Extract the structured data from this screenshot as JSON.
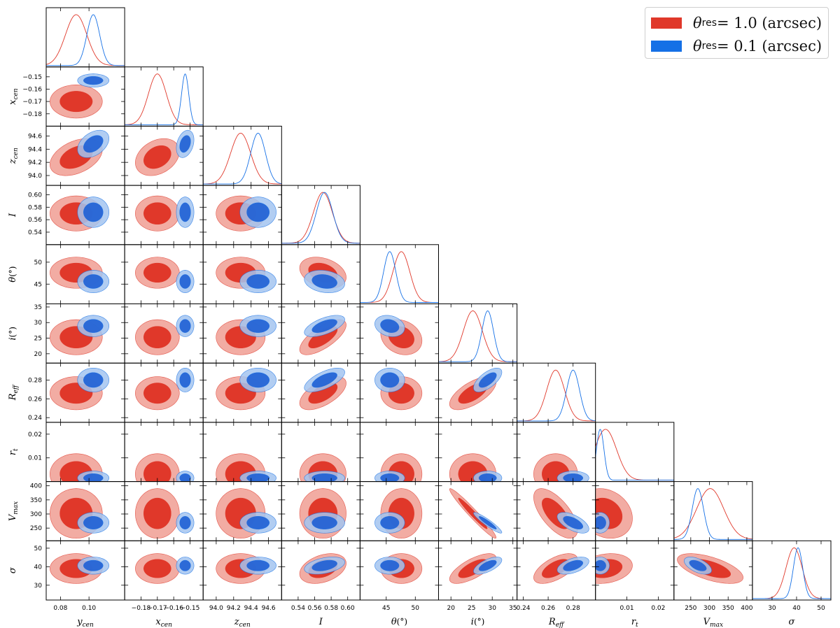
{
  "chart_data": {
    "type": "corner",
    "parameters": [
      {
        "symbol": "y",
        "sub": "cen",
        "unit": "",
        "label_text": "y_cen",
        "range": [
          0.07,
          0.125
        ],
        "ticks": [
          0.08,
          0.1
        ],
        "tick_labels": [
          "0.08",
          "0.10"
        ]
      },
      {
        "symbol": "x",
        "sub": "cen",
        "unit": "",
        "label_text": "x_cen",
        "range": [
          -0.19,
          -0.142
        ],
        "ticks": [
          -0.18,
          -0.17,
          -0.16,
          -0.15
        ],
        "tick_labels": [
          "−0.18",
          "−0.17",
          "−0.16",
          "−0.15"
        ]
      },
      {
        "symbol": "z",
        "sub": "cen",
        "unit": "",
        "label_text": "z_cen",
        "range": [
          93.85,
          94.75
        ],
        "ticks": [
          94.0,
          94.2,
          94.4,
          94.6
        ],
        "tick_labels": [
          "94.0",
          "94.2",
          "94.4",
          "94.6"
        ]
      },
      {
        "symbol": "I",
        "sub": "",
        "unit": "",
        "label_text": "I",
        "range": [
          0.52,
          0.615
        ],
        "ticks": [
          0.54,
          0.56,
          0.58,
          0.6
        ],
        "tick_labels": [
          "0.54",
          "0.56",
          "0.58",
          "0.60"
        ]
      },
      {
        "symbol": "θ",
        "sub": "",
        "unit": "(°)",
        "label_text": "θ(°)",
        "range": [
          40.5,
          54
        ],
        "ticks": [
          45,
          50
        ],
        "tick_labels": [
          "45",
          "50"
        ]
      },
      {
        "symbol": "i",
        "sub": "",
        "unit": "(°)",
        "label_text": "i(°)",
        "range": [
          17,
          36
        ],
        "ticks": [
          20,
          25,
          30,
          35
        ],
        "tick_labels": [
          "20",
          "25",
          "30",
          "35"
        ]
      },
      {
        "symbol": "R",
        "sub": "eff",
        "unit": "",
        "label_text": "R_eff",
        "range": [
          0.235,
          0.298
        ],
        "ticks": [
          0.24,
          0.26,
          0.28
        ],
        "tick_labels": [
          "0.24",
          "0.26",
          "0.28"
        ]
      },
      {
        "symbol": "r",
        "sub": "t",
        "unit": "",
        "label_text": "r_t",
        "range": [
          0.0,
          0.025
        ],
        "ticks": [
          0.01,
          0.02
        ],
        "tick_labels": [
          "0.01",
          "0.02"
        ]
      },
      {
        "symbol": "V",
        "sub": "max",
        "unit": "",
        "label_text": "V_max",
        "range": [
          205,
          415
        ],
        "ticks": [
          250,
          300,
          350,
          400
        ],
        "tick_labels": [
          "250",
          "300",
          "350",
          "400"
        ]
      },
      {
        "symbol": "σ",
        "sub": "",
        "unit": "",
        "label_text": "σ",
        "range": [
          22,
          54
        ],
        "ticks": [
          30,
          40,
          50
        ],
        "tick_labels": [
          "30",
          "40",
          "50"
        ]
      }
    ],
    "series": [
      {
        "name": "θres = 1.0 (arcsec)",
        "color": "#e0382a",
        "inner_color": "#e0382a",
        "outer_color": "#f2aca3",
        "means": [
          0.091,
          -0.17,
          94.28,
          0.57,
          47.6,
          25.3,
          0.266,
          0.0032,
          302,
          39.0
        ],
        "sigmas": [
          0.0075,
          0.0055,
          0.115,
          0.0115,
          1.45,
          2.3,
          0.0072,
          0.0035,
          36,
          3.3
        ],
        "correlations": [
          [
            5,
            3,
            0.7
          ],
          [
            6,
            3,
            0.6
          ],
          [
            6,
            5,
            0.65
          ],
          [
            8,
            5,
            -0.97
          ],
          [
            8,
            6,
            -0.65
          ],
          [
            9,
            3,
            0.35
          ],
          [
            9,
            5,
            0.7
          ],
          [
            9,
            6,
            0.6
          ],
          [
            9,
            8,
            -0.6
          ],
          [
            2,
            0,
            0.4
          ],
          [
            2,
            1,
            0.3
          ],
          [
            4,
            3,
            -0.3
          ],
          [
            4,
            5,
            -0.2
          ],
          [
            9,
            7,
            0.2
          ],
          [
            8,
            7,
            -0.2
          ]
        ]
      },
      {
        "name": "θres = 0.1 (arcsec)",
        "color": "#1570e6",
        "inner_color": "#1e5fd4",
        "outer_color": "#a3c4f0",
        "means": [
          0.103,
          -0.153,
          94.48,
          0.572,
          45.6,
          28.9,
          0.28,
          0.0015,
          269,
          40.6
        ],
        "sigmas": [
          0.0045,
          0.0022,
          0.085,
          0.01,
          1.05,
          1.4,
          0.0052,
          0.0012,
          15,
          1.9
        ],
        "correlations": [
          [
            5,
            3,
            0.6
          ],
          [
            6,
            3,
            0.65
          ],
          [
            6,
            5,
            0.65
          ],
          [
            8,
            5,
            -0.93
          ],
          [
            8,
            6,
            -0.6
          ],
          [
            9,
            3,
            0.4
          ],
          [
            9,
            5,
            0.65
          ],
          [
            9,
            6,
            0.5
          ],
          [
            9,
            8,
            -0.55
          ],
          [
            2,
            0,
            0.4
          ],
          [
            2,
            1,
            0.3
          ],
          [
            4,
            3,
            -0.2
          ],
          [
            4,
            5,
            -0.2
          ]
        ]
      }
    ],
    "legend": {
      "position": "top-right"
    }
  },
  "legend": {
    "items": [
      {
        "symbol": "θ",
        "sub": "res",
        "rest": " = 1.0 (arcsec)",
        "color": "#e0382a"
      },
      {
        "symbol": "θ",
        "sub": "res",
        "rest": " = 0.1 (arcsec)",
        "color": "#1570e6"
      }
    ]
  }
}
